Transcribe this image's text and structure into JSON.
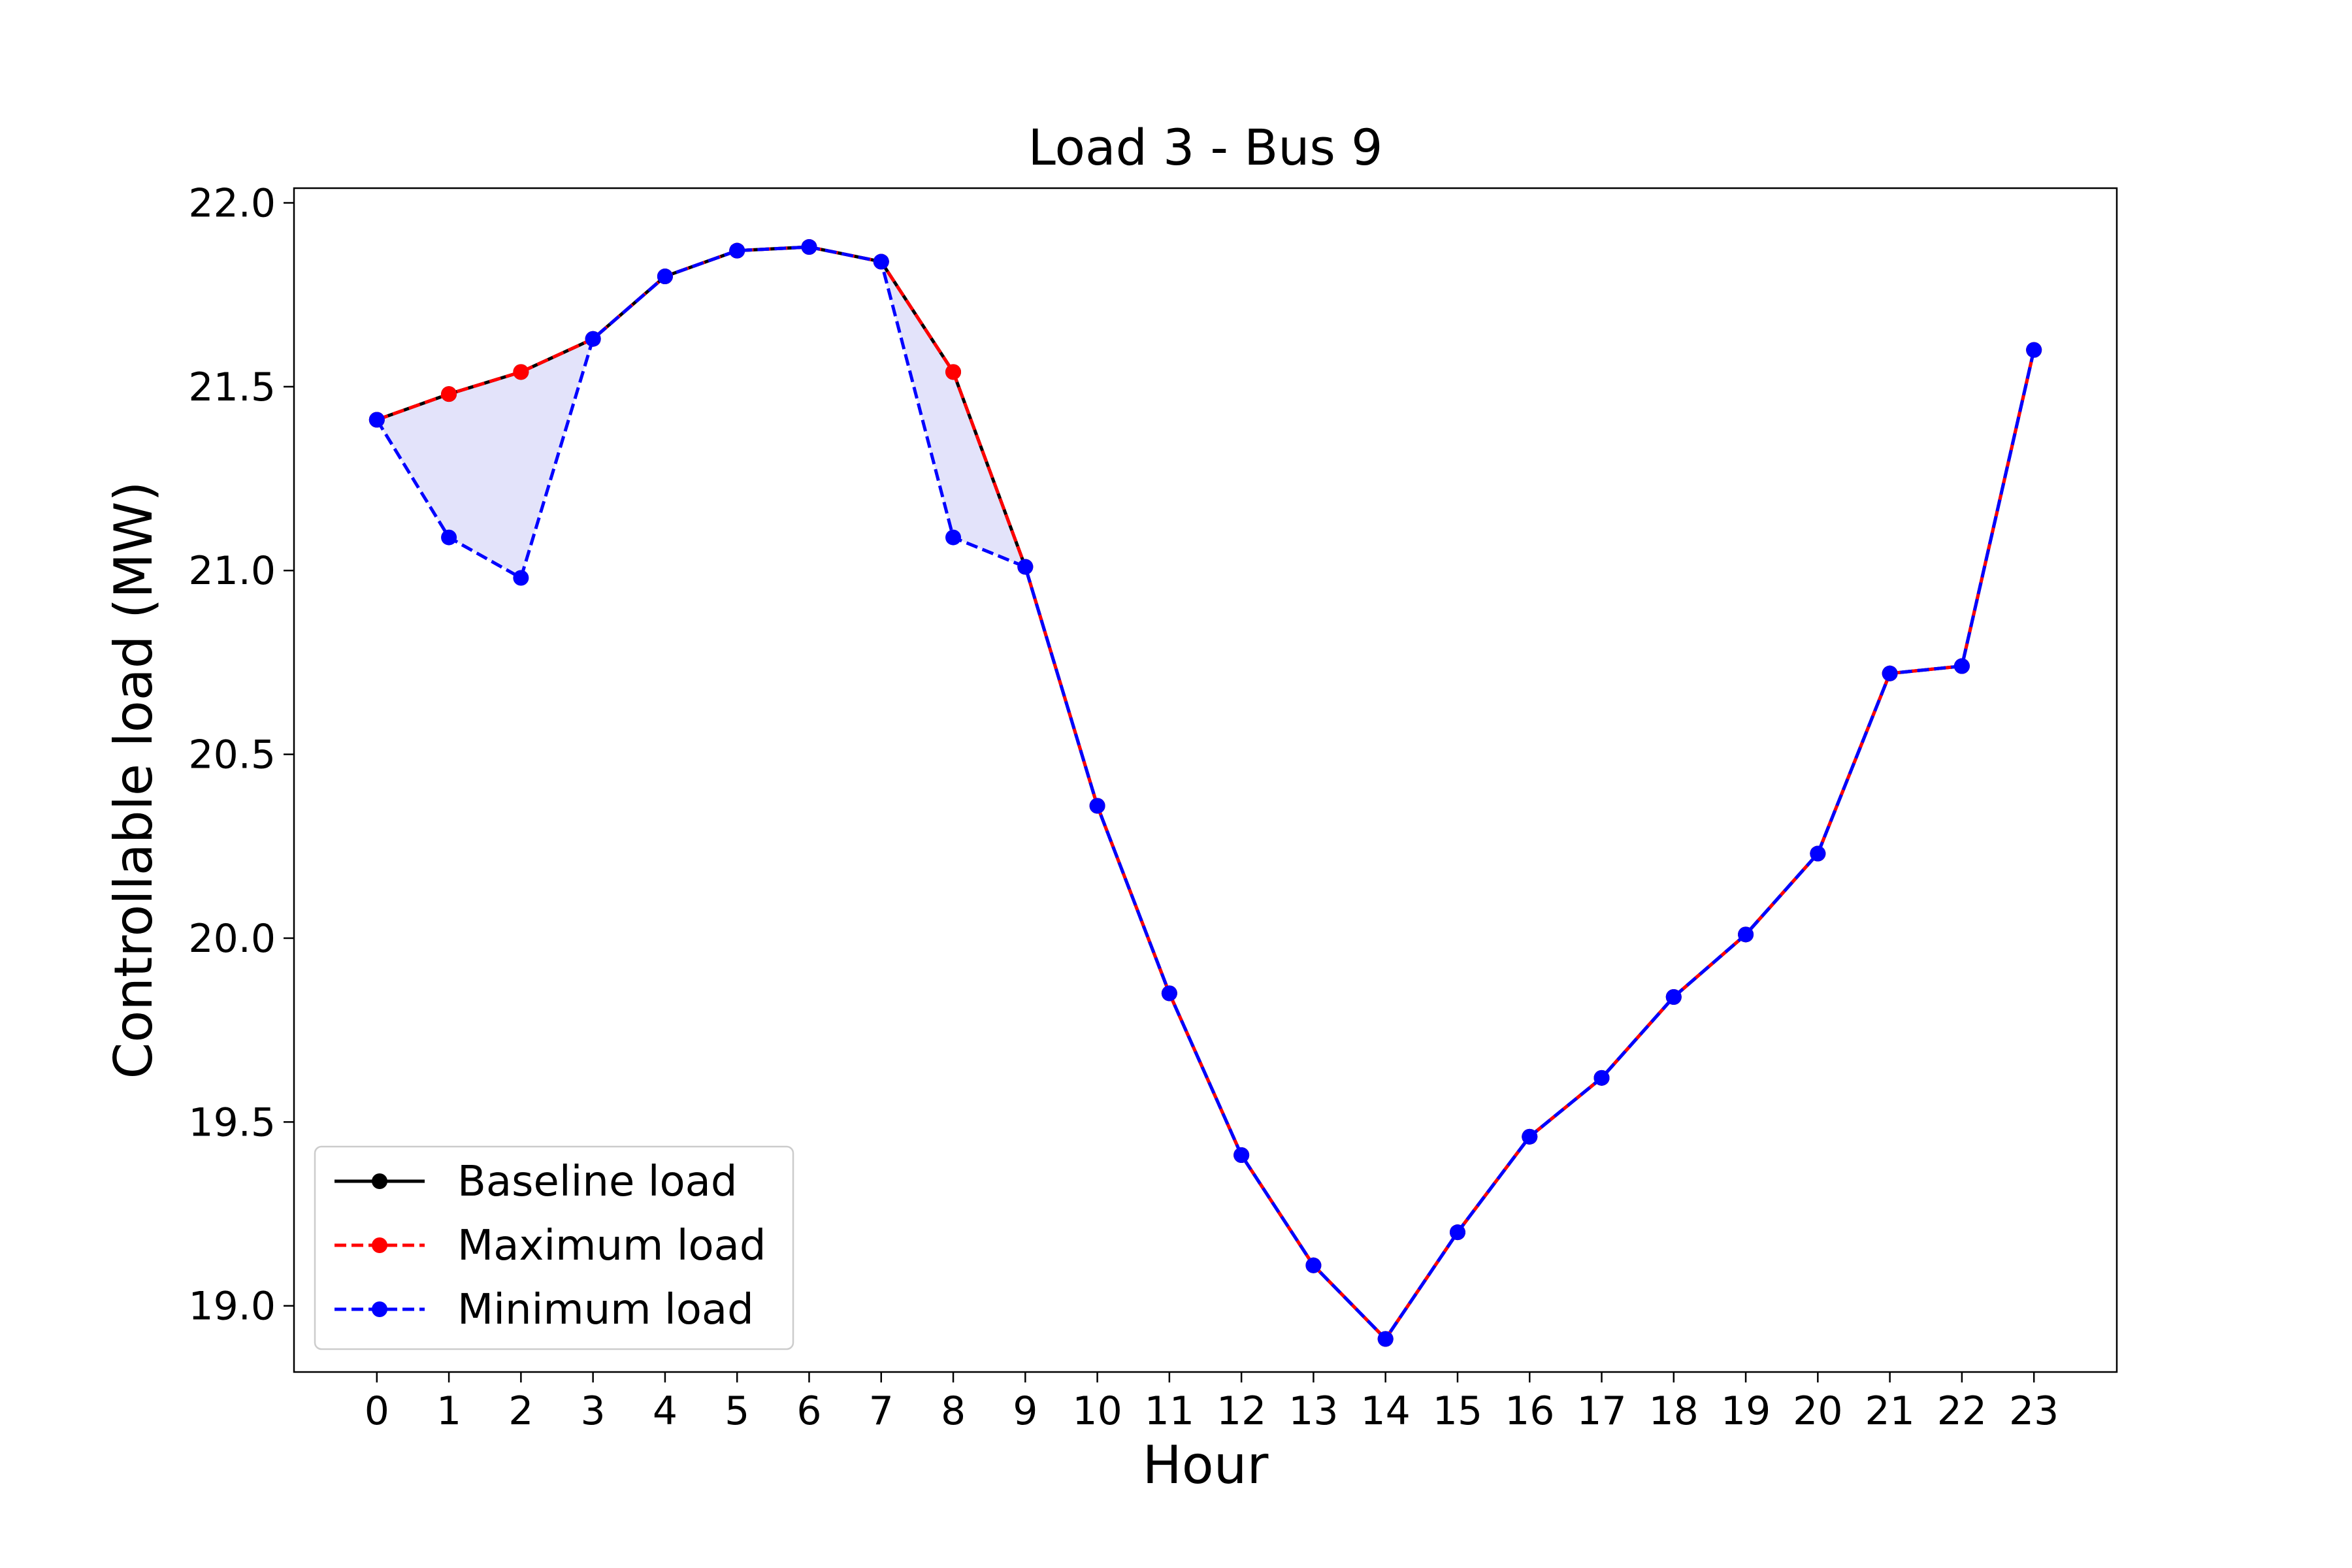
{
  "chart_data": {
    "type": "line",
    "title": "Load 3 - Bus 9",
    "xlabel": "Hour",
    "ylabel": "Controllable load (MW)",
    "x": [
      0,
      1,
      2,
      3,
      4,
      5,
      6,
      7,
      8,
      9,
      10,
      11,
      12,
      13,
      14,
      15,
      16,
      17,
      18,
      19,
      20,
      21,
      22,
      23
    ],
    "xlim": [
      -1.15,
      24.15
    ],
    "ylim": [
      18.82,
      22.04
    ],
    "yticks": [
      19.0,
      19.5,
      20.0,
      20.5,
      21.0,
      21.5,
      22.0
    ],
    "ytick_labels": [
      "19.0",
      "19.5",
      "20.0",
      "20.5",
      "21.0",
      "21.5",
      "22.0"
    ],
    "xtick_labels": [
      "0",
      "1",
      "2",
      "3",
      "4",
      "5",
      "6",
      "7",
      "8",
      "9",
      "10",
      "11",
      "12",
      "13",
      "14",
      "15",
      "16",
      "17",
      "18",
      "19",
      "20",
      "21",
      "22",
      "23"
    ],
    "grid": false,
    "legend_position": "lower-left",
    "fill_between": {
      "color": "#e3e3fa",
      "between": [
        "Maximum load",
        "Minimum load"
      ]
    },
    "series": [
      {
        "name": "Baseline load",
        "color": "#000000",
        "linestyle": "solid",
        "values": [
          21.41,
          21.48,
          21.54,
          21.63,
          21.8,
          21.87,
          21.88,
          21.84,
          21.54,
          21.01,
          20.36,
          19.85,
          19.41,
          19.11,
          18.91,
          19.2,
          19.46,
          19.62,
          19.84,
          20.01,
          20.23,
          20.72,
          20.74,
          21.6
        ]
      },
      {
        "name": "Maximum load",
        "color": "#ff0000",
        "linestyle": "dashed",
        "values": [
          21.41,
          21.48,
          21.54,
          21.63,
          21.8,
          21.87,
          21.88,
          21.84,
          21.54,
          21.01,
          20.36,
          19.85,
          19.41,
          19.11,
          18.91,
          19.2,
          19.46,
          19.62,
          19.84,
          20.01,
          20.23,
          20.72,
          20.74,
          21.6
        ]
      },
      {
        "name": "Minimum load",
        "color": "#0000ff",
        "linestyle": "dashed",
        "values": [
          21.41,
          21.09,
          20.98,
          21.63,
          21.8,
          21.87,
          21.88,
          21.84,
          21.09,
          21.01,
          20.36,
          19.85,
          19.41,
          19.11,
          18.91,
          19.2,
          19.46,
          19.62,
          19.84,
          20.01,
          20.23,
          20.72,
          20.74,
          21.6
        ]
      }
    ]
  }
}
